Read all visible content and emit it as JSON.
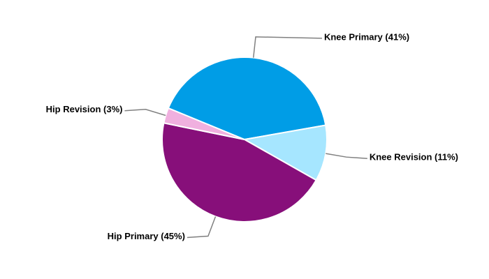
{
  "chart_data": {
    "type": "pie",
    "categories": [
      "Knee Primary (41%)",
      "Knee Revision (11%)",
      "Hip Primary (45%)",
      "Hip Revision (3%)"
    ],
    "values": [
      41,
      11,
      45,
      3
    ],
    "colors": [
      "#009de6",
      "#a6e6ff",
      "#870f7a",
      "#f0b0df"
    ]
  }
}
